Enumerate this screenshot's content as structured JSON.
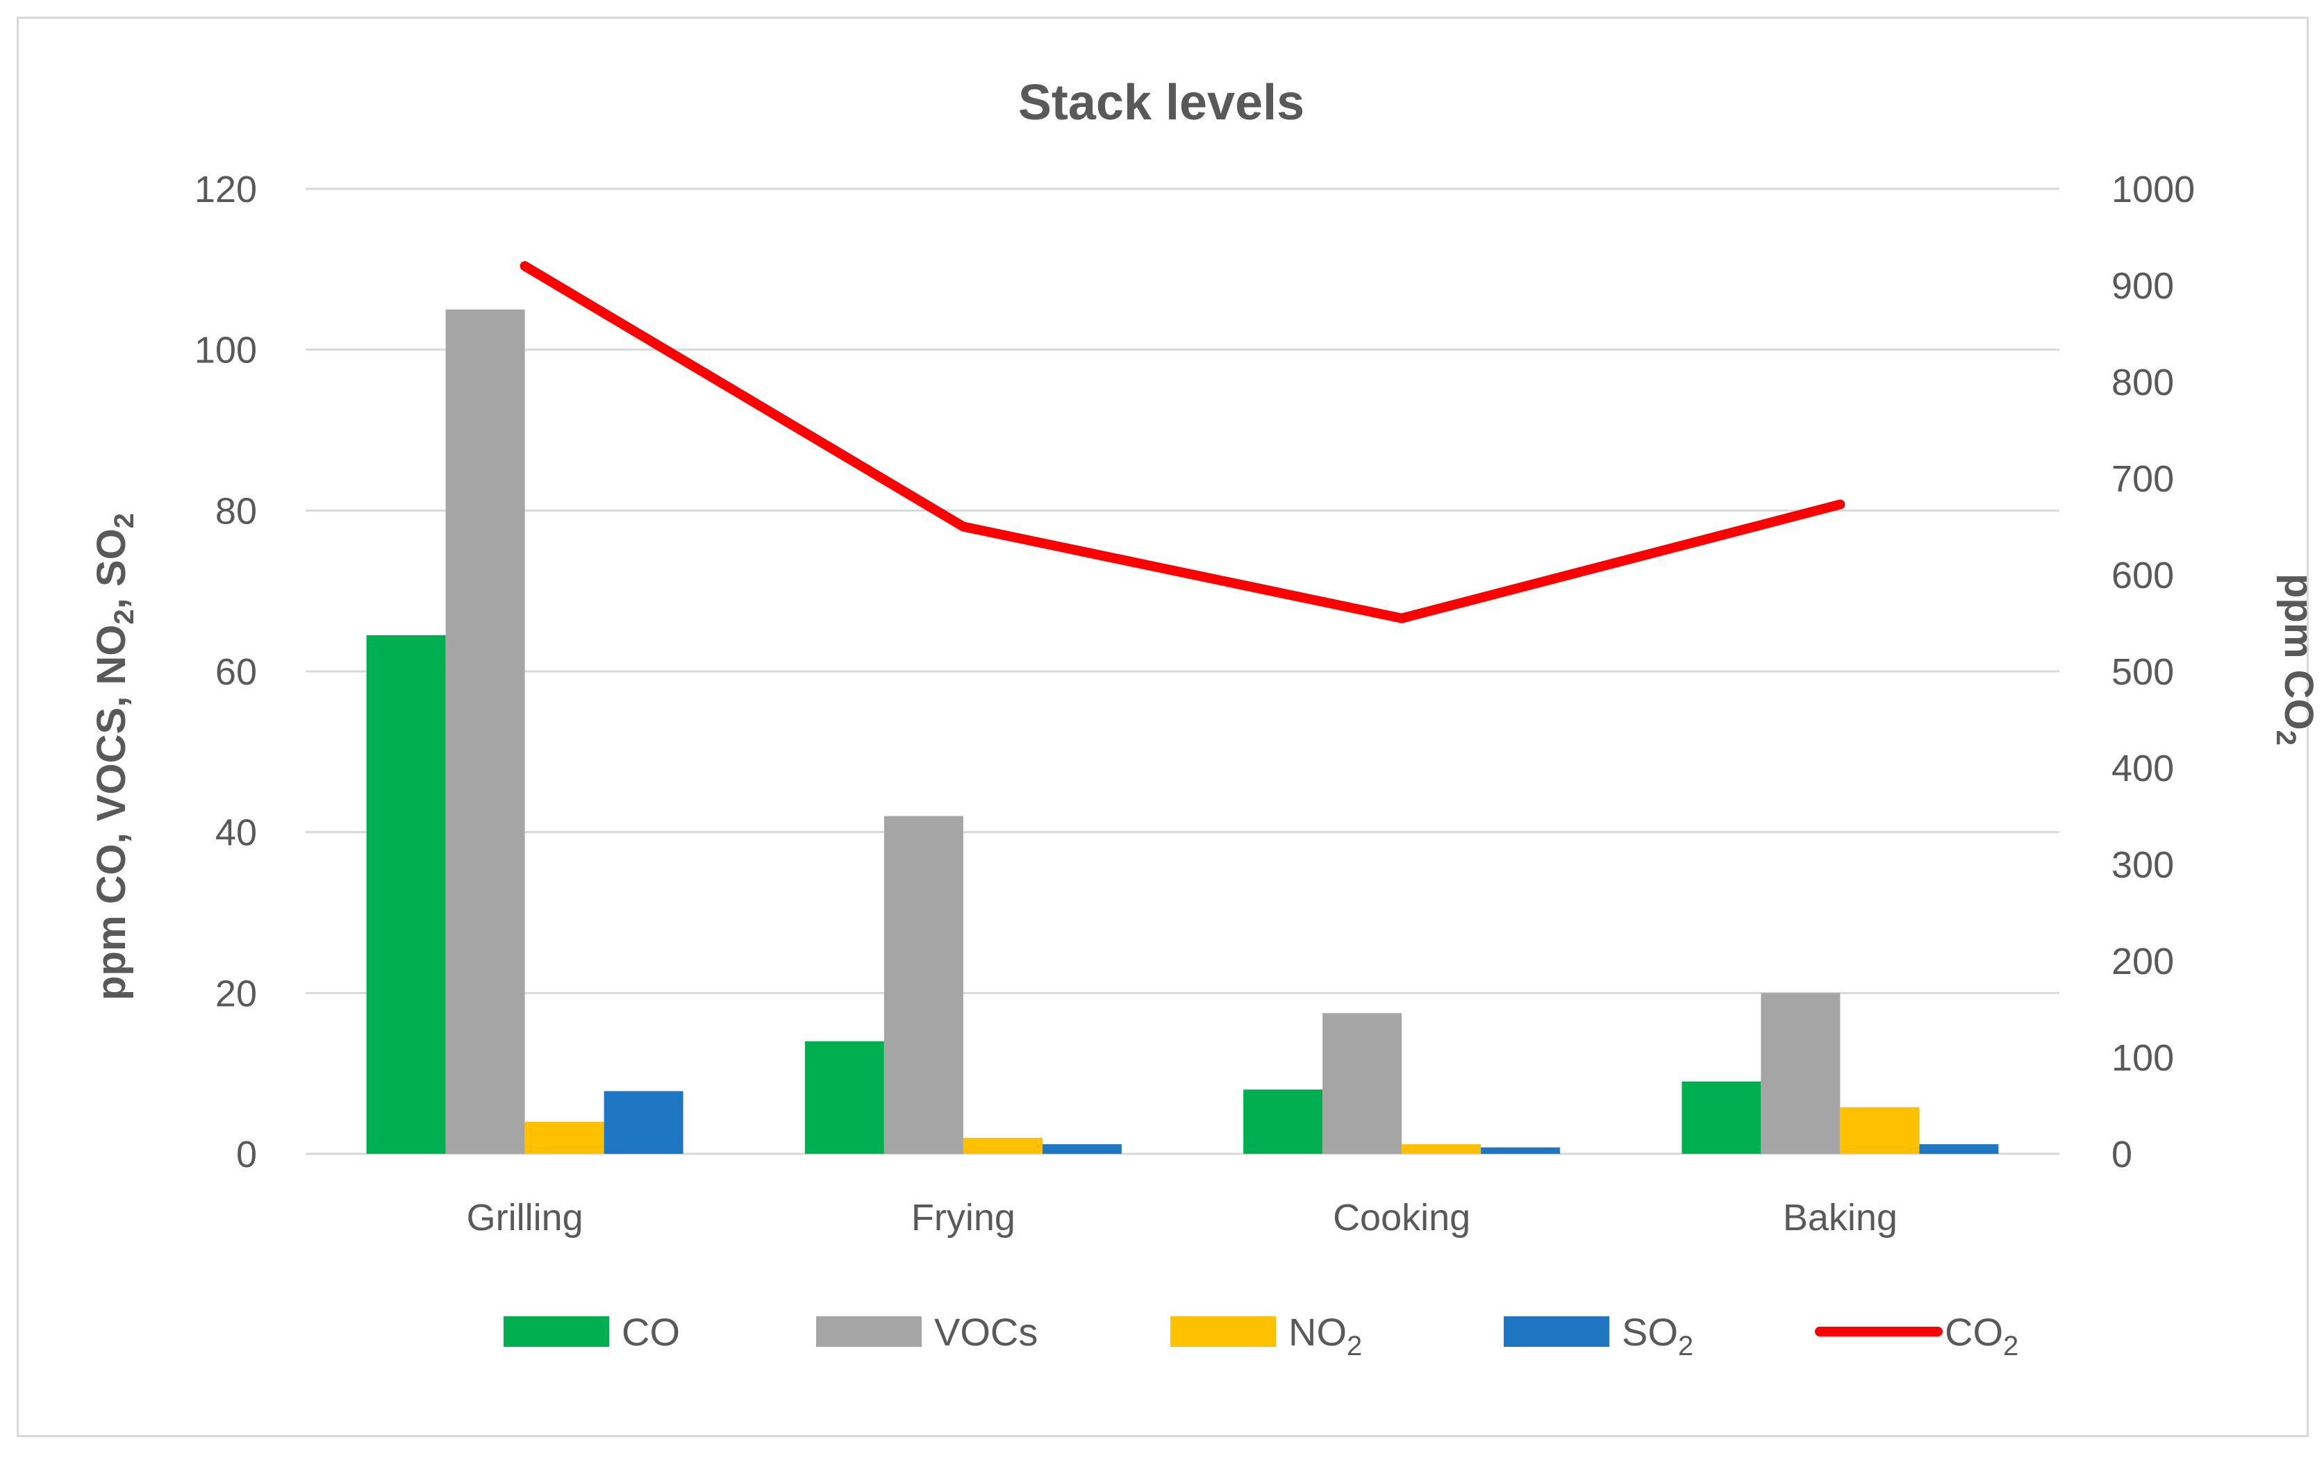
{
  "chart_data": {
    "type": "bar",
    "title": "Stack levels",
    "categories": [
      "Grilling",
      "Frying",
      "Cooking",
      "Baking"
    ],
    "series": [
      {
        "name": "CO",
        "type": "bar",
        "axis": "left",
        "color": "#00b050",
        "values": [
          64.5,
          14.0,
          8.0,
          9.0
        ]
      },
      {
        "name": "VOCs",
        "type": "bar",
        "axis": "left",
        "color": "#a5a5a5",
        "values": [
          105.0,
          42.0,
          17.5,
          20.0
        ]
      },
      {
        "name": "NO2",
        "type": "bar",
        "axis": "left",
        "color": "#ffc000",
        "values": [
          4.0,
          2.0,
          1.2,
          5.8
        ]
      },
      {
        "name": "SO2",
        "type": "bar",
        "axis": "left",
        "color": "#1f77c4",
        "values": [
          7.8,
          1.2,
          0.8,
          1.2
        ]
      },
      {
        "name": "CO2",
        "type": "line",
        "axis": "right",
        "color": "#ff0000",
        "values": [
          920,
          650,
          555,
          673
        ]
      }
    ],
    "ylabel_left": "ppm CO, VOCS, NO2, SO2",
    "ylabel_right": "ppm CO2",
    "ylim_left": [
      0,
      120
    ],
    "ylim_right": [
      0,
      1000
    ],
    "yticks_left": [
      0,
      20,
      40,
      60,
      80,
      100,
      120
    ],
    "yticks_right": [
      0,
      100,
      200,
      300,
      400,
      500,
      600,
      700,
      800,
      900,
      1000
    ],
    "grid": true,
    "legend_position": "bottom"
  }
}
